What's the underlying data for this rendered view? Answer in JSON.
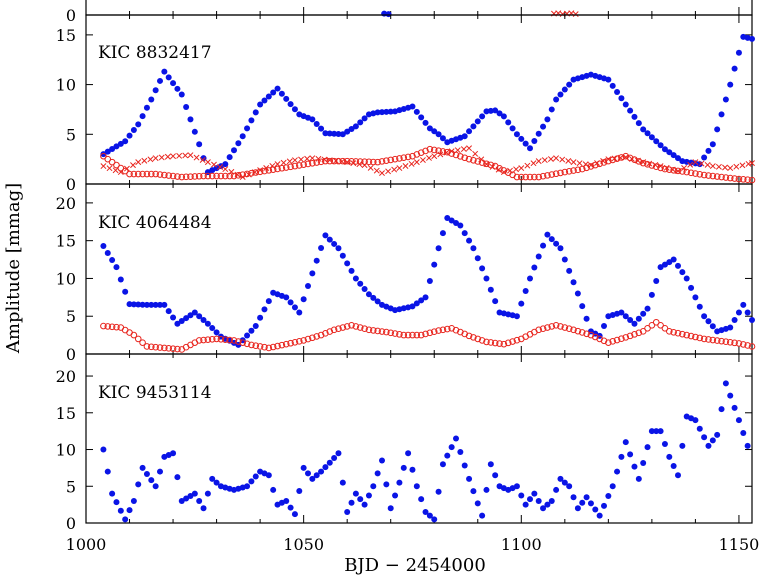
{
  "colors": {
    "blue": "#0a14e6",
    "red": "#e8251e",
    "axis": "#000000"
  },
  "chart_data": {
    "type": "scatter",
    "xlabel": "BJD − 2454000",
    "ylabel": "Amplitude [mmag]",
    "xlim": [
      1000,
      1153
    ],
    "x_ticks": [
      1000,
      1050,
      1100,
      1150
    ],
    "x_tick_labels": [
      "1000",
      "1050",
      "1100",
      "1150"
    ],
    "panels": [
      {
        "label": "",
        "ylim": [
          0,
          2.5
        ],
        "y_ticks": [
          0
        ],
        "y_tick_labels": [
          "0"
        ],
        "series": [
          {
            "marker": "dot",
            "color": "blue",
            "x": [
              1068.5,
              1069.5
            ],
            "y": [
              0.15,
              0.1
            ]
          },
          {
            "marker": "cross",
            "color": "red",
            "x": [
              1107.5,
              1108.5,
              1109.5,
              1110.5,
              1111.5,
              1112.5
            ],
            "y": [
              0.15,
              0.2,
              0.1,
              0.15,
              0.2,
              0.1
            ]
          }
        ]
      },
      {
        "label": "KIC 8832417",
        "ylim": [
          0,
          17
        ],
        "y_ticks": [
          0,
          5,
          10,
          15
        ],
        "y_tick_labels": [
          "0",
          "5",
          "10",
          "15"
        ],
        "series": [
          {
            "marker": "dot",
            "color": "blue",
            "kx": [
              1004,
              1009,
              1012,
              1015,
              1018,
              1022,
              1026,
              1028,
              1032,
              1036,
              1040,
              1044,
              1049,
              1052,
              1055,
              1059,
              1062,
              1065,
              1067,
              1071,
              1075,
              1079,
              1081,
              1083,
              1087,
              1092,
              1094,
              1096,
              1099,
              1102,
              1106,
              1108,
              1112,
              1116,
              1120,
              1124,
              1128,
              1133,
              1137,
              1141,
              1144,
              1148,
              1151,
              1153
            ],
            "ky": [
              3,
              4.3,
              6,
              8.5,
              11.3,
              9,
              4,
              1.2,
              2,
              4.8,
              8,
              9.6,
              7,
              6.5,
              5.1,
              5,
              5.8,
              7,
              7.2,
              7.3,
              7.8,
              5.6,
              5,
              4.2,
              4.8,
              7.3,
              7.4,
              6.8,
              5,
              3.6,
              6.5,
              8.5,
              10.5,
              11,
              10.5,
              8,
              5.5,
              3.5,
              2.3,
              2,
              4,
              10,
              14.8,
              14.6
            ]
          },
          {
            "marker": "circle",
            "color": "red",
            "kx": [
              1004,
              1010,
              1016,
              1022,
              1027,
              1034,
              1041,
              1048,
              1055,
              1060,
              1067,
              1075,
              1079,
              1083,
              1088,
              1094,
              1099,
              1104,
              1110,
              1114,
              1120,
              1124,
              1128,
              1133,
              1138,
              1142,
              1146,
              1150,
              1153
            ],
            "ky": [
              2.8,
              1,
              1,
              0.7,
              0.8,
              0.8,
              1.3,
              1.8,
              2.3,
              2.3,
              2.2,
              2.8,
              3.5,
              3.2,
              2.5,
              1.8,
              0.7,
              0.7,
              1.2,
              1.5,
              2.3,
              2.8,
              2.1,
              1.5,
              1.2,
              0.9,
              0.7,
              0.5,
              0.4
            ]
          },
          {
            "marker": "cross",
            "color": "red",
            "kx": [
              1004,
              1008,
              1012,
              1016,
              1020,
              1024,
              1028,
              1032,
              1036,
              1040,
              1044,
              1048,
              1052,
              1056,
              1060,
              1064,
              1068,
              1072,
              1076,
              1080,
              1084,
              1088,
              1092,
              1096,
              1100,
              1104,
              1108,
              1112,
              1116,
              1120,
              1124,
              1128,
              1132,
              1136,
              1140,
              1144,
              1148,
              1153
            ],
            "ky": [
              1.8,
              1.2,
              2.2,
              2.6,
              2.8,
              2.9,
              2.2,
              1.5,
              0.7,
              1.4,
              2,
              2.4,
              2.6,
              2.4,
              2.2,
              1.9,
              1.1,
              1.6,
              2.2,
              2.8,
              3.3,
              3.6,
              2,
              1.2,
              1.6,
              2.3,
              2.6,
              2.2,
              1.9,
              2.5,
              2.7,
              2.2,
              1.8,
              1.3,
              2.2,
              1.8,
              1.6,
              2.1
            ]
          }
        ]
      },
      {
        "label": "KIC 4064484",
        "ylim": [
          0,
          22.5
        ],
        "y_ticks": [
          0,
          5,
          10,
          15,
          20
        ],
        "y_tick_labels": [
          "0",
          "5",
          "10",
          "15",
          "20"
        ],
        "series": [
          {
            "marker": "dot",
            "color": "blue",
            "kx": [
              1004,
              1007,
              1010,
              1014,
              1018,
              1021,
              1025,
              1028,
              1031,
              1035,
              1039,
              1043,
              1046,
              1049,
              1051,
              1055,
              1058,
              1062,
              1065,
              1068,
              1071,
              1075,
              1078,
              1081,
              1083,
              1086,
              1089,
              1092,
              1095,
              1099,
              1102,
              1106,
              1109,
              1113,
              1116,
              1118,
              1120,
              1123,
              1126,
              1129,
              1132,
              1135,
              1138,
              1142,
              1145,
              1148,
              1151,
              1153
            ],
            "ky": [
              14.3,
              11.5,
              6.6,
              6.5,
              6.5,
              4,
              5.5,
              4,
              2.3,
              1.2,
              3.7,
              8.1,
              7.5,
              5.5,
              9,
              15.7,
              14,
              10,
              7.9,
              6.5,
              5.8,
              6.3,
              7.5,
              14,
              18,
              17,
              14,
              10,
              5.5,
              5,
              10,
              15.8,
              14,
              8,
              3,
              2.4,
              5,
              5.5,
              4,
              6,
              11.5,
              12.5,
              10,
              5,
              3,
              3.5,
              6.5,
              4.5
            ]
          },
          {
            "marker": "circle",
            "color": "red",
            "kx": [
              1004,
              1008,
              1011,
              1014,
              1018,
              1022,
              1026,
              1030,
              1034,
              1038,
              1042,
              1046,
              1050,
              1054,
              1057,
              1061,
              1065,
              1069,
              1073,
              1077,
              1081,
              1084,
              1088,
              1092,
              1096,
              1100,
              1104,
              1108,
              1112,
              1116,
              1120,
              1124,
              1128,
              1131,
              1134,
              1138,
              1142,
              1146,
              1150,
              1153
            ],
            "ky": [
              3.7,
              3.5,
              2.5,
              1,
              0.8,
              0.6,
              1.8,
              2,
              1.8,
              1.2,
              0.8,
              1.3,
              1.8,
              2.5,
              3.2,
              3.8,
              3.2,
              2.9,
              2.5,
              2.5,
              3.1,
              3.4,
              2.4,
              1.6,
              1.3,
              2,
              3.2,
              3.8,
              3.2,
              2.5,
              1.5,
              2.2,
              3,
              4.2,
              3,
              2.5,
              2,
              1.7,
              1.4,
              1
            ]
          }
        ]
      },
      {
        "label": "KIC 9453114",
        "ylim": [
          0,
          23
        ],
        "y_ticks": [
          0,
          5,
          10,
          15,
          20
        ],
        "y_tick_labels": [
          "0",
          "5",
          "10",
          "15",
          "20"
        ],
        "series": [
          {
            "marker": "dot",
            "color": "blue",
            "kx": [
              1004,
              1006,
              1009,
              1011,
              1013,
              1016,
              1018,
              1020,
              1022,
              1025,
              1027,
              1029,
              1031,
              1034,
              1037,
              1040,
              1042,
              1044,
              1046,
              1048,
              1050,
              1052,
              1054,
              1056,
              1058,
              1060,
              1062,
              1064,
              1066,
              1068,
              1070,
              1072,
              1074,
              1076,
              1078,
              1080,
              1082,
              1085,
              1088,
              1091,
              1093,
              1095,
              1097,
              1099,
              1101,
              1103,
              1105,
              1107,
              1109,
              1111,
              1113,
              1115,
              1118,
              1121,
              1124,
              1127,
              1130,
              1132,
              1134,
              1136,
              1138,
              1140,
              1143,
              1145,
              1147,
              1150,
              1152
            ],
            "ky": [
              10,
              4,
              0.5,
              3,
              7.5,
              5,
              9,
              9.5,
              3,
              4,
              2,
              6,
              5,
              4.5,
              5,
              7,
              6.5,
              2.5,
              3,
              1.2,
              7.5,
              6,
              7,
              8.2,
              9.5,
              1.5,
              4,
              2.5,
              5,
              8.5,
              2,
              5.5,
              9.5,
              5,
              1.5,
              0.5,
              8,
              11.5,
              6,
              1,
              8,
              5,
              4.5,
              5,
              2.5,
              4,
              2,
              3,
              6,
              5,
              2,
              3.5,
              1,
              5,
              11,
              6,
              12.5,
              12.5,
              9,
              6.5,
              14.5,
              14,
              10.5,
              12,
              19,
              14,
              10.5
            ]
          }
        ]
      }
    ]
  }
}
